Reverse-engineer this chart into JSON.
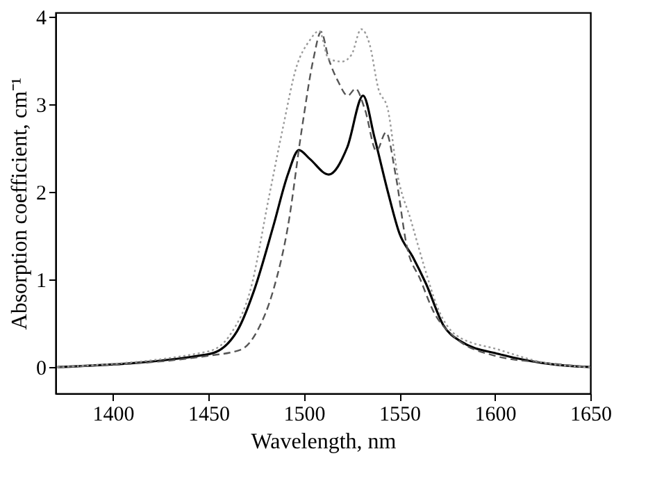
{
  "chart_data": {
    "type": "line",
    "xlabel": "Wavelength,  nm",
    "ylabel": "Absorption coefficient,  cm⁻¹",
    "xlim": [
      1370,
      1650
    ],
    "ylim": [
      -0.3,
      4.05
    ],
    "xticks": [
      1400,
      1450,
      1500,
      1550,
      1600,
      1650
    ],
    "yticks": [
      0,
      1,
      2,
      3,
      4
    ],
    "grid": false,
    "series": [
      {
        "color": "#000000",
        "line_style": "solid",
        "x": [
          1371,
          1450.5,
          1465,
          1474,
          1484,
          1491.6,
          1497.4,
          1503,
          1513,
          1522.7,
          1531,
          1537,
          1544,
          1550,
          1557,
          1564,
          1573,
          1582.5,
          1602,
          1631,
          1650
        ],
        "values": [
          0,
          0.15,
          0.41,
          0.88,
          1.61,
          2.2,
          2.48,
          2.38,
          2.2,
          2.51,
          3.1,
          2.62,
          2.0,
          1.53,
          1.26,
          0.95,
          0.48,
          0.29,
          0.15,
          0.03,
          0
        ]
      },
      {
        "color": "#555555",
        "line_style": "dashed",
        "x": [
          1371,
          1450,
          1467,
          1476,
          1484,
          1491.6,
          1499,
          1505,
          1509,
          1513,
          1518,
          1523,
          1527,
          1532,
          1538,
          1543,
          1548,
          1554,
          1561,
          1568,
          1578,
          1600,
          1626,
          1650
        ],
        "values": [
          0,
          0.13,
          0.2,
          0.43,
          0.88,
          1.6,
          2.73,
          3.52,
          3.83,
          3.52,
          3.26,
          3.1,
          3.18,
          2.94,
          2.47,
          2.68,
          2.2,
          1.37,
          1.0,
          0.63,
          0.36,
          0.13,
          0.05,
          0
        ]
      },
      {
        "color": "#999999",
        "line_style": "dotted",
        "x": [
          1371,
          1450,
          1462,
          1472,
          1481.7,
          1489,
          1496,
          1503,
          1508,
          1513,
          1520,
          1525,
          1530,
          1534.5,
          1539,
          1544,
          1549,
          1556,
          1563,
          1570,
          1580,
          1602,
          1626,
          1650
        ],
        "values": [
          0,
          0.18,
          0.39,
          0.88,
          1.94,
          2.73,
          3.42,
          3.73,
          3.84,
          3.52,
          3.49,
          3.57,
          3.86,
          3.68,
          3.18,
          2.94,
          2.2,
          1.68,
          1.15,
          0.68,
          0.36,
          0.2,
          0.05,
          0
        ]
      }
    ]
  }
}
